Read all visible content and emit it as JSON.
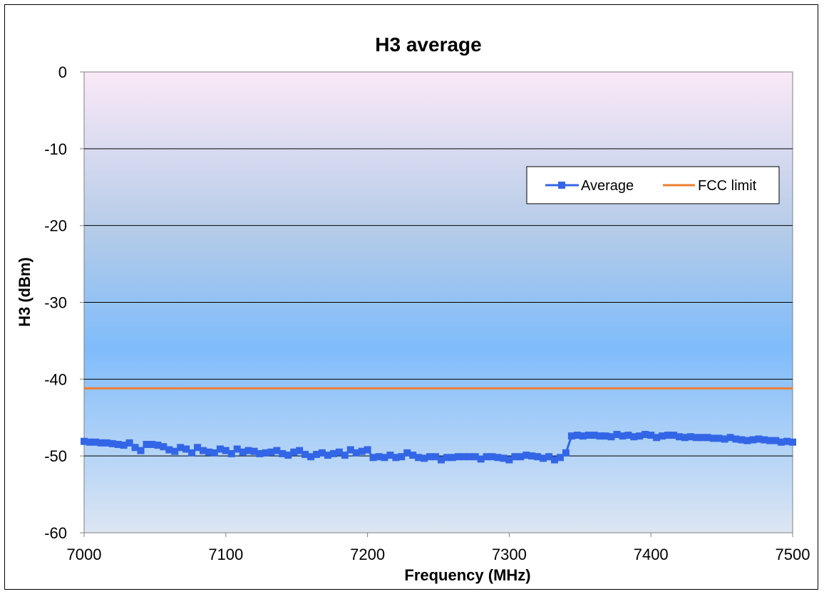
{
  "chart_data": {
    "type": "line",
    "title": "H3 average",
    "xlabel": "Frequency (MHz)",
    "ylabel": "H3 (dBm)",
    "xlim": [
      7000,
      7500
    ],
    "ylim": [
      -60,
      0
    ],
    "x_ticks": [
      "7000",
      "7100",
      "7200",
      "7300",
      "7400",
      "7500"
    ],
    "y_ticks": [
      "0",
      "-10",
      "-20",
      "-30",
      "-40",
      "-50",
      "-60"
    ],
    "grid": "horizontal",
    "legend_position": "top-right",
    "series": [
      {
        "name": "Average",
        "color": "#3366e6",
        "marker": "square",
        "x": [
          7000,
          7004,
          7008,
          7012,
          7016,
          7020,
          7024,
          7028,
          7032,
          7036,
          7040,
          7044,
          7048,
          7052,
          7056,
          7060,
          7064,
          7068,
          7072,
          7076,
          7080,
          7084,
          7088,
          7092,
          7096,
          7100,
          7104,
          7108,
          7112,
          7116,
          7120,
          7124,
          7128,
          7132,
          7136,
          7140,
          7144,
          7148,
          7152,
          7156,
          7160,
          7164,
          7168,
          7172,
          7176,
          7180,
          7184,
          7188,
          7192,
          7196,
          7200,
          7204,
          7208,
          7212,
          7216,
          7220,
          7224,
          7228,
          7232,
          7236,
          7240,
          7244,
          7248,
          7252,
          7256,
          7260,
          7264,
          7268,
          7272,
          7276,
          7280,
          7284,
          7288,
          7292,
          7296,
          7300,
          7304,
          7308,
          7312,
          7316,
          7320,
          7324,
          7328,
          7332,
          7336,
          7340,
          7344,
          7348,
          7352,
          7356,
          7360,
          7364,
          7368,
          7372,
          7376,
          7380,
          7384,
          7388,
          7392,
          7396,
          7400,
          7404,
          7408,
          7412,
          7416,
          7420,
          7424,
          7428,
          7432,
          7436,
          7440,
          7444,
          7448,
          7452,
          7456,
          7460,
          7464,
          7468,
          7472,
          7476,
          7480,
          7484,
          7488,
          7492,
          7496,
          7500
        ],
        "y": [
          -48.1,
          -48.2,
          -48.2,
          -48.3,
          -48.3,
          -48.4,
          -48.5,
          -48.6,
          -48.3,
          -48.9,
          -49.3,
          -48.5,
          -48.5,
          -48.6,
          -48.8,
          -49.2,
          -49.4,
          -48.9,
          -49.1,
          -49.6,
          -48.9,
          -49.3,
          -49.5,
          -49.6,
          -49.1,
          -49.3,
          -49.7,
          -49.1,
          -49.5,
          -49.3,
          -49.4,
          -49.7,
          -49.6,
          -49.5,
          -49.3,
          -49.7,
          -49.9,
          -49.5,
          -49.3,
          -49.8,
          -50.1,
          -49.8,
          -49.6,
          -49.9,
          -49.7,
          -49.5,
          -49.9,
          -49.2,
          -49.6,
          -49.4,
          -49.2,
          -50.2,
          -50.1,
          -50.2,
          -49.9,
          -50.2,
          -50.1,
          -49.6,
          -49.9,
          -50.2,
          -50.3,
          -50.1,
          -50.1,
          -50.5,
          -50.2,
          -50.2,
          -50.1,
          -50.1,
          -50.1,
          -50.1,
          -50.4,
          -50.1,
          -50.1,
          -50.2,
          -50.3,
          -50.5,
          -50.1,
          -50.1,
          -49.9,
          -50.0,
          -50.1,
          -50.3,
          -50.1,
          -50.5,
          -50.2,
          -49.6,
          -47.4,
          -47.3,
          -47.4,
          -47.3,
          -47.3,
          -47.4,
          -47.4,
          -47.5,
          -47.2,
          -47.4,
          -47.3,
          -47.5,
          -47.4,
          -47.2,
          -47.3,
          -47.6,
          -47.4,
          -47.3,
          -47.3,
          -47.5,
          -47.6,
          -47.5,
          -47.6,
          -47.6,
          -47.6,
          -47.7,
          -47.7,
          -47.8,
          -47.6,
          -47.8,
          -47.9,
          -48.0,
          -47.9,
          -47.8,
          -47.9,
          -48.0,
          -48.0,
          -48.2,
          -48.1,
          -48.2
        ]
      },
      {
        "name": "FCC limit",
        "color": "#f07d32",
        "marker": "none",
        "x": [
          7000,
          7500
        ],
        "y": [
          -41.2,
          -41.2
        ]
      }
    ]
  }
}
